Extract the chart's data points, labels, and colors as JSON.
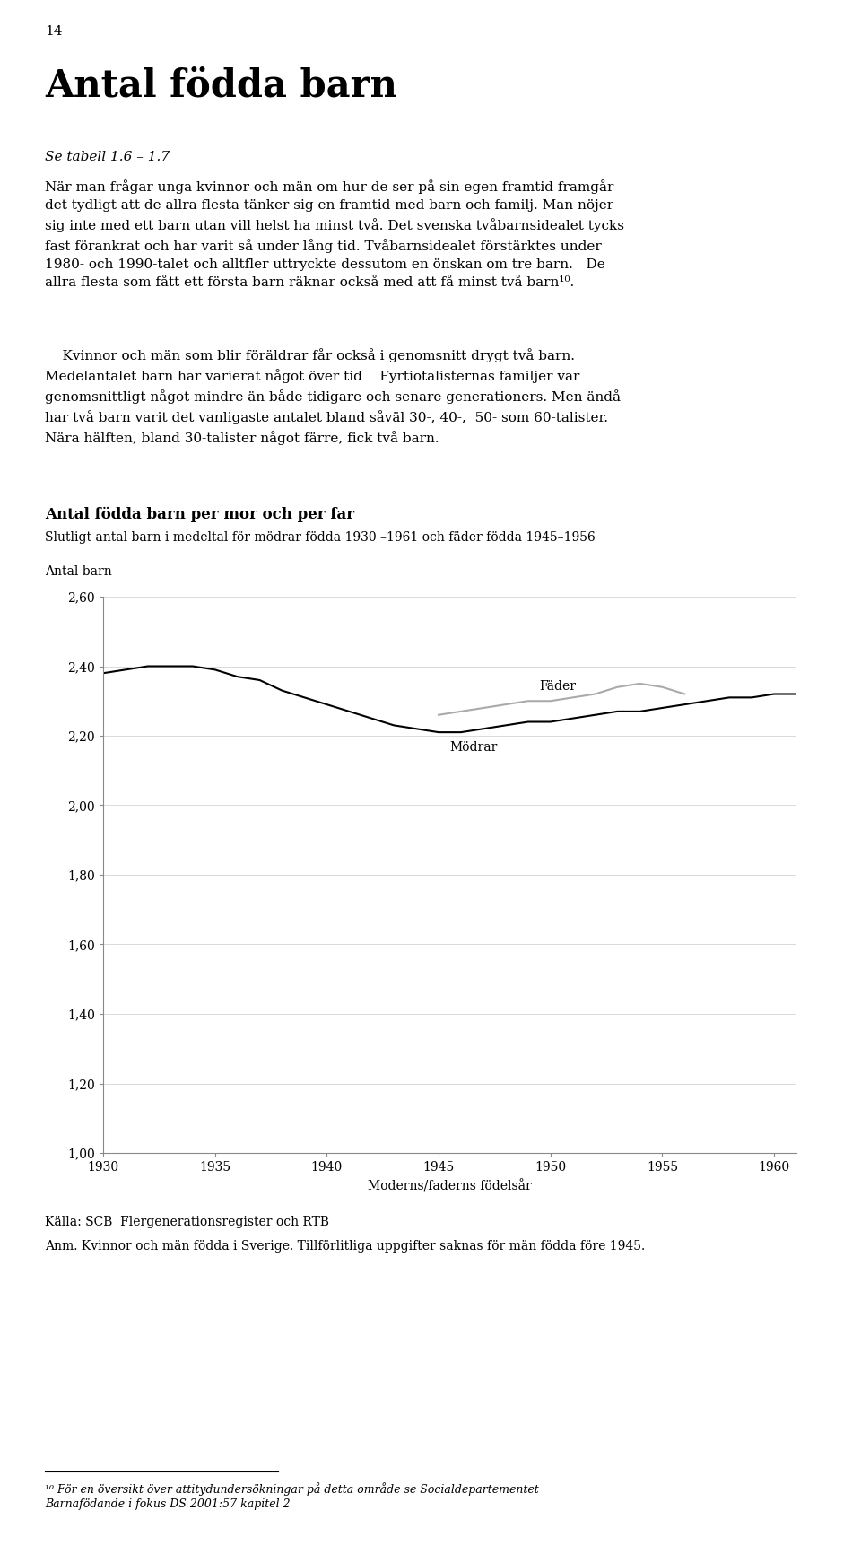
{
  "page_number": "14",
  "main_title": "Antal födda barn",
  "subtitle_italic": "Se tabell 1.6 – 1.7",
  "body1_lines": [
    "När man frågar unga kvinnor och män om hur de ser på sin egen framtid framgår",
    "det tydligt att de allra flesta tänker sig en framtid med barn och familj. Man nöjer",
    "sig inte med ett barn utan vill helst ha minst två. Det svenska tvåbarnsidealet tycks",
    "fast förankrat och har varit så under lång tid. Tvåbarnsidealet förstärktes under",
    "1980- och 1990-talet och alltfler uttryckte dessutom en önskan om tre barn.   De",
    "allra flesta som fått ett första barn räknar också med att få minst två barn¹⁰."
  ],
  "body2_lines": [
    "    Kvinnor och män som blir föräldrar får också i genomsnitt drygt två barn.",
    "Medelantalet barn har varierat något över tid    Fyrtiotalisternas familjer var",
    "genomsnittligt något mindre än både tidigare och senare generationers. Men ändå",
    "har två barn varit det vanligaste antalet bland såväl 30-, 40-,  50- som 60-talister.",
    "Nära hälften, bland 30-talister något färre, fick två barn."
  ],
  "chart_title": "Antal födda barn per mor och per far",
  "chart_subtitle": "Slutligt antal barn i medeltal för mödrar födda 1930 –1961 och fäder födda 1945–1956",
  "ylabel": "Antal barn",
  "xlabel": "Moderns/faderns födelsår",
  "source_line1": "Källa: SCB  Flergenerationsregister och RTB",
  "source_line2": "Anm. Kvinnor och män födda i Sverige. Tillförlitliga uppgifter saknas för män födda före 1945.",
  "footnote_line1": "¹⁰ För en översikt över attitydundersökningar på detta område se Socialdepartementet",
  "footnote_line2": "Barnafödande i fokus DS 2001:57 kapitel 2",
  "ylim": [
    1.0,
    2.6
  ],
  "yticks": [
    1.0,
    1.2,
    1.4,
    1.6,
    1.8,
    2.0,
    2.2,
    2.4,
    2.6
  ],
  "ytick_labels": [
    "1,00",
    "1,20",
    "1,40",
    "1,60",
    "1,80",
    "2,00",
    "2,20",
    "2,40",
    "2,60"
  ],
  "xlim": [
    1930,
    1961
  ],
  "xticks": [
    1930,
    1935,
    1940,
    1945,
    1950,
    1955,
    1960
  ],
  "modrar_x": [
    1930,
    1931,
    1932,
    1933,
    1934,
    1935,
    1936,
    1937,
    1938,
    1939,
    1940,
    1941,
    1942,
    1943,
    1944,
    1945,
    1946,
    1947,
    1948,
    1949,
    1950,
    1951,
    1952,
    1953,
    1954,
    1955,
    1956,
    1957,
    1958,
    1959,
    1960,
    1961
  ],
  "modrar_y": [
    2.38,
    2.39,
    2.4,
    2.4,
    2.4,
    2.39,
    2.37,
    2.36,
    2.33,
    2.31,
    2.29,
    2.27,
    2.25,
    2.23,
    2.22,
    2.21,
    2.21,
    2.22,
    2.23,
    2.24,
    2.24,
    2.25,
    2.26,
    2.27,
    2.27,
    2.28,
    2.29,
    2.3,
    2.31,
    2.31,
    2.32,
    2.32
  ],
  "fader_x": [
    1945,
    1946,
    1947,
    1948,
    1949,
    1950,
    1951,
    1952,
    1953,
    1954,
    1955,
    1956
  ],
  "fader_y": [
    2.26,
    2.27,
    2.28,
    2.29,
    2.3,
    2.3,
    2.31,
    2.32,
    2.34,
    2.35,
    2.34,
    2.32
  ],
  "modrar_color": "#000000",
  "fader_color": "#aaaaaa",
  "modrar_label": "Mödrar",
  "fader_label": "Fäder",
  "background_color": "#ffffff",
  "line_width": 1.5
}
